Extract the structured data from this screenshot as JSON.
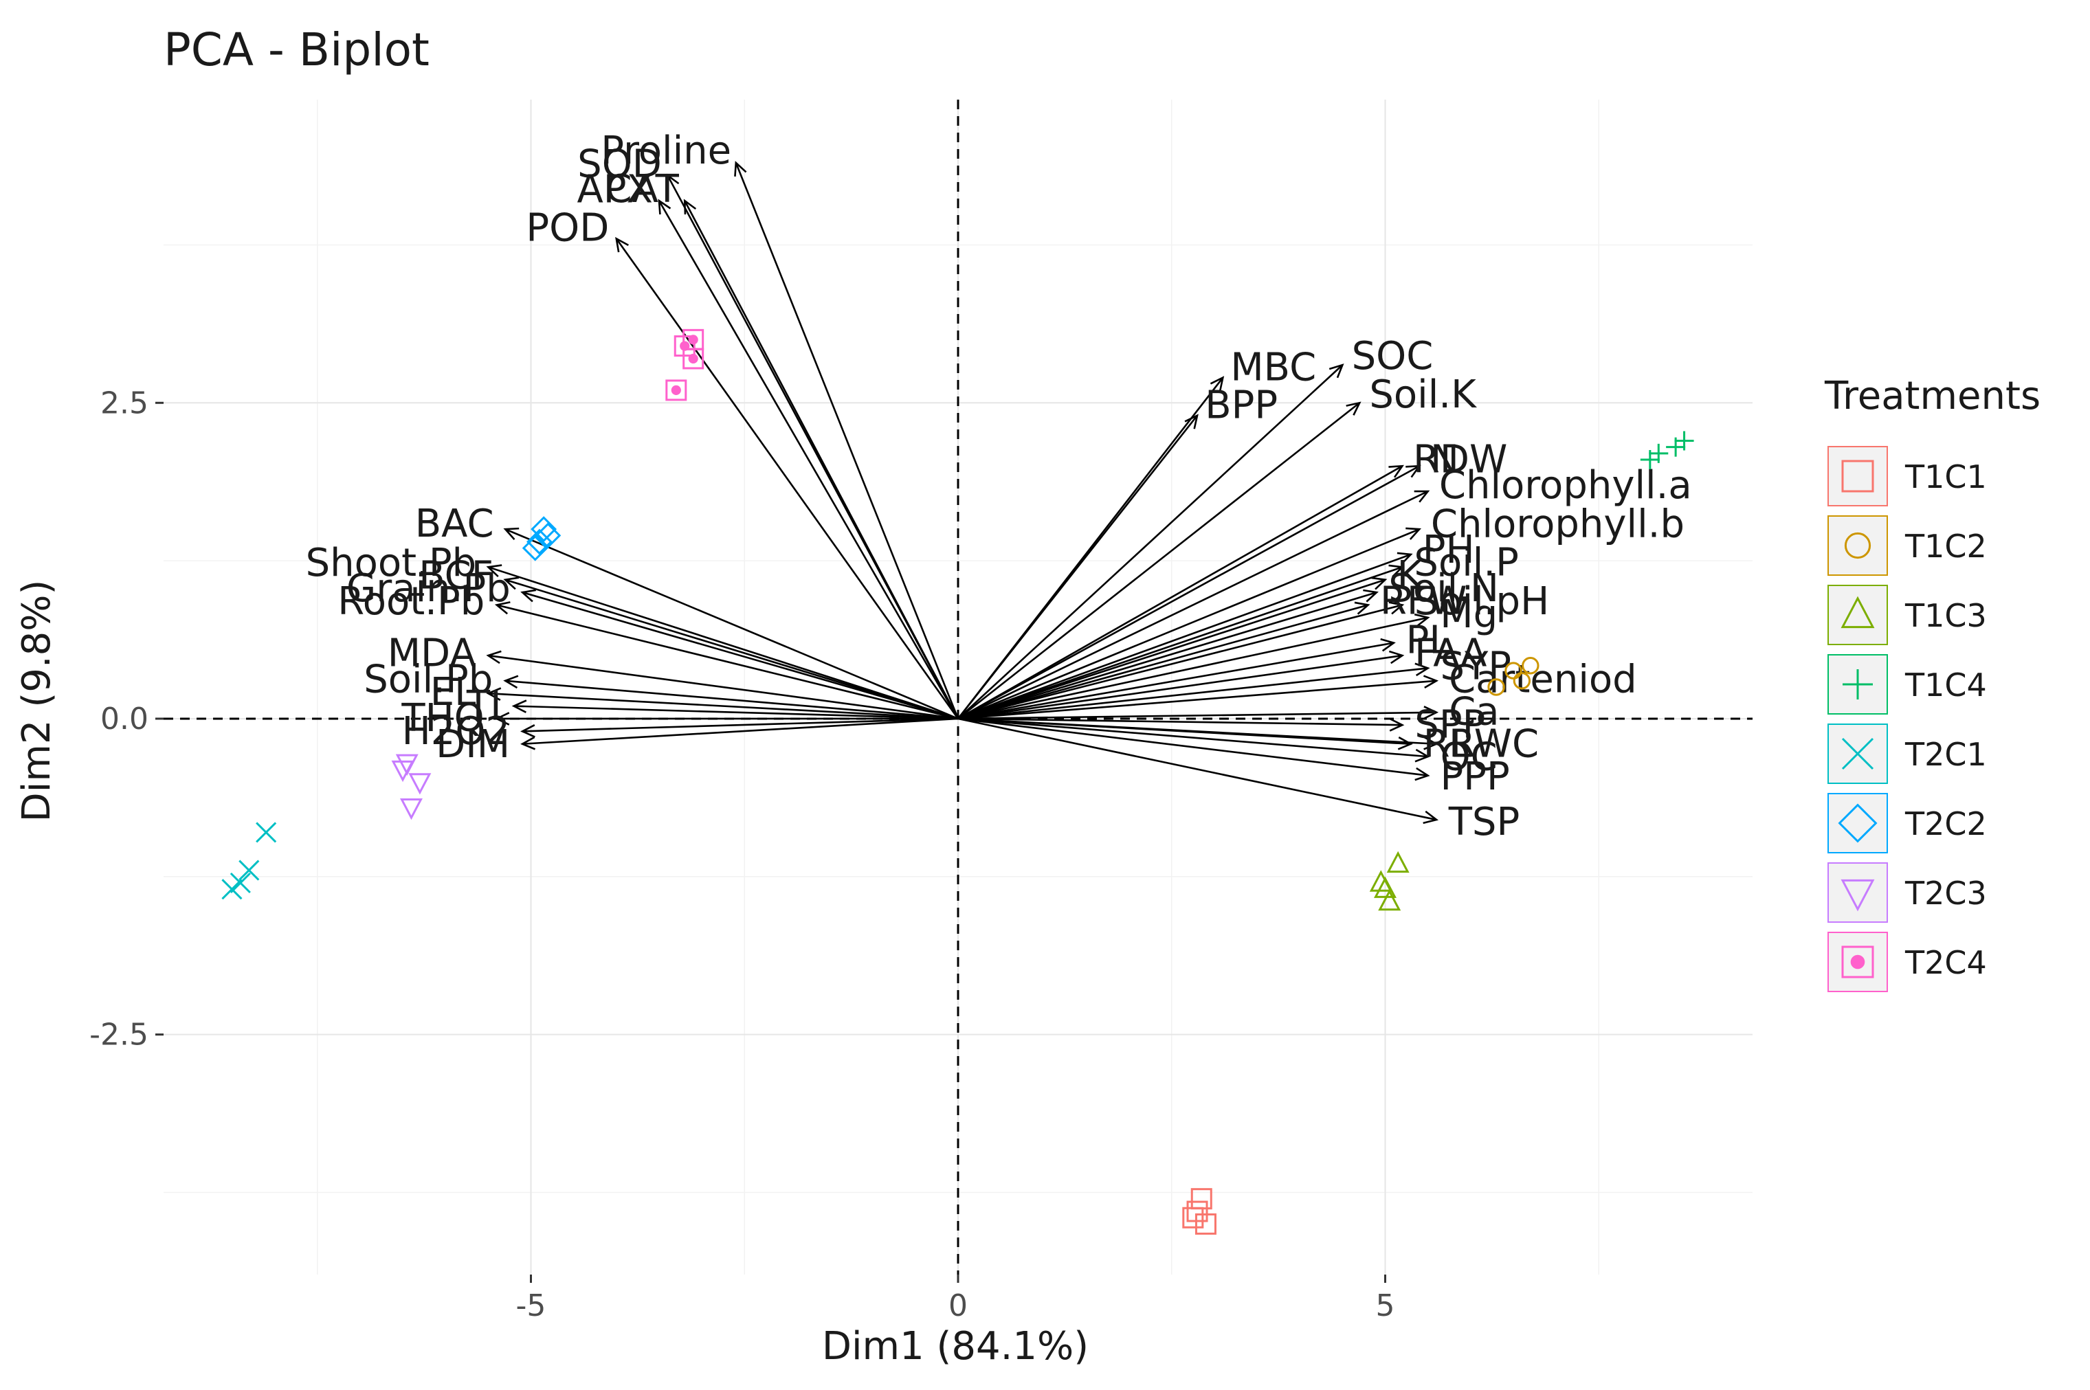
{
  "chart_data": {
    "type": "scatter",
    "subtype": "pca-biplot",
    "title": "PCA - Biplot",
    "xlabel": "Dim1 (84.1%)",
    "ylabel": "Dim2 (9.8%)",
    "xlim": [
      -9.3,
      9.3
    ],
    "ylim": [
      -4.4,
      4.9
    ],
    "x_ticks": [
      -5,
      0,
      5
    ],
    "y_ticks": [
      -2.5,
      0.0,
      2.5
    ],
    "x_tick_labels": [
      "-5",
      "0",
      "5"
    ],
    "y_tick_labels": [
      "-2.5",
      "0.0",
      "2.5"
    ],
    "grid": true,
    "reference_lines": {
      "x": 0,
      "y": 0,
      "style": "dashed"
    },
    "legend": {
      "title": "Treatments",
      "placement": "right",
      "entries": [
        {
          "label": "T1C1",
          "color": "#F8766D",
          "shape": "square"
        },
        {
          "label": "T1C2",
          "color": "#CD9600",
          "shape": "circle"
        },
        {
          "label": "T1C3",
          "color": "#7CAE00",
          "shape": "triangle-up"
        },
        {
          "label": "T1C4",
          "color": "#00BE67",
          "shape": "plus"
        },
        {
          "label": "T2C1",
          "color": "#00BFC4",
          "shape": "cross"
        },
        {
          "label": "T2C2",
          "color": "#00A9FF",
          "shape": "diamond"
        },
        {
          "label": "T2C3",
          "color": "#C77CFF",
          "shape": "triangle-down"
        },
        {
          "label": "T2C4",
          "color": "#FF61CC",
          "shape": "square-dot"
        }
      ]
    },
    "variables": [
      {
        "name": "SOD",
        "x": -3.4,
        "y": 4.3
      },
      {
        "name": "Proline",
        "x": -2.6,
        "y": 4.4
      },
      {
        "name": "CAT",
        "x": -3.2,
        "y": 4.1
      },
      {
        "name": "APX",
        "x": -3.5,
        "y": 4.1
      },
      {
        "name": "POD",
        "x": -4.0,
        "y": 3.8
      },
      {
        "name": "MBC",
        "x": 3.1,
        "y": 2.7
      },
      {
        "name": "BPP",
        "x": 2.8,
        "y": 2.4
      },
      {
        "name": "SOC",
        "x": 4.5,
        "y": 2.8
      },
      {
        "name": "Soil.K",
        "x": 4.7,
        "y": 2.5
      },
      {
        "name": "N",
        "x": 5.4,
        "y": 2.0
      },
      {
        "name": "RDW",
        "x": 5.2,
        "y": 2.0
      },
      {
        "name": "Chlorophyll.a",
        "x": 5.5,
        "y": 1.8
      },
      {
        "name": "Chlorophyll.b",
        "x": 5.4,
        "y": 1.5
      },
      {
        "name": "PH",
        "x": 5.3,
        "y": 1.3
      },
      {
        "name": "Soil.P",
        "x": 5.2,
        "y": 1.2
      },
      {
        "name": "K",
        "x": 5.0,
        "y": 1.1
      },
      {
        "name": "Soil.N",
        "x": 4.9,
        "y": 1.0
      },
      {
        "name": "RFW",
        "x": 4.8,
        "y": 0.9
      },
      {
        "name": "Soil.pH",
        "x": 5.2,
        "y": 0.9
      },
      {
        "name": "Mg",
        "x": 5.5,
        "y": 0.8
      },
      {
        "name": "PL",
        "x": 5.1,
        "y": 0.6
      },
      {
        "name": "FAA",
        "x": 5.2,
        "y": 0.5
      },
      {
        "name": "SYP",
        "x": 5.5,
        "y": 0.4
      },
      {
        "name": "Carteniod",
        "x": 5.6,
        "y": 0.3
      },
      {
        "name": "Ca",
        "x": 5.6,
        "y": 0.05
      },
      {
        "name": "SPP",
        "x": 5.2,
        "y": -0.05
      },
      {
        "name": "RL",
        "x": 5.3,
        "y": -0.2
      },
      {
        "name": "RWC",
        "x": 5.6,
        "y": -0.2
      },
      {
        "name": "OC",
        "x": 5.5,
        "y": -0.3
      },
      {
        "name": "PPP",
        "x": 5.5,
        "y": -0.45
      },
      {
        "name": "TSP",
        "x": 5.6,
        "y": -0.8
      },
      {
        "name": "BAC",
        "x": -5.3,
        "y": 1.5
      },
      {
        "name": "Shoot.Pb",
        "x": -5.5,
        "y": 1.2
      },
      {
        "name": "BCF",
        "x": -5.3,
        "y": 1.1
      },
      {
        "name": "Grain.Pb",
        "x": -5.1,
        "y": 1.0
      },
      {
        "name": "Root.Pb",
        "x": -5.4,
        "y": 0.9
      },
      {
        "name": "MDA",
        "x": -5.5,
        "y": 0.5
      },
      {
        "name": "Soil.Pb",
        "x": -5.3,
        "y": 0.3
      },
      {
        "name": "EL",
        "x": -5.5,
        "y": 0.2
      },
      {
        "name": "TI",
        "x": -5.2,
        "y": 0.1
      },
      {
        "name": "THQ",
        "x": -5.4,
        "y": 0.0
      },
      {
        "name": "H2O2",
        "x": -5.1,
        "y": -0.1
      },
      {
        "name": "DIM",
        "x": -5.1,
        "y": -0.2
      }
    ],
    "series": [
      {
        "name": "T1C1",
        "points": [
          [
            2.8,
            -3.9
          ],
          [
            2.85,
            -3.8
          ],
          [
            2.9,
            -4.0
          ],
          [
            2.75,
            -3.95
          ]
        ]
      },
      {
        "name": "T1C2",
        "points": [
          [
            6.3,
            0.25
          ],
          [
            6.5,
            0.38
          ],
          [
            6.7,
            0.42
          ],
          [
            6.6,
            0.3
          ]
        ]
      },
      {
        "name": "T1C3",
        "points": [
          [
            5.0,
            -1.35
          ],
          [
            5.15,
            -1.15
          ],
          [
            5.05,
            -1.45
          ],
          [
            4.95,
            -1.3
          ]
        ]
      },
      {
        "name": "T1C4",
        "points": [
          [
            8.2,
            2.1
          ],
          [
            8.5,
            2.2
          ],
          [
            8.4,
            2.15
          ],
          [
            8.1,
            2.05
          ]
        ]
      },
      {
        "name": "T2C1",
        "points": [
          [
            -8.5,
            -1.35
          ],
          [
            -8.3,
            -1.2
          ],
          [
            -8.1,
            -0.9
          ],
          [
            -8.4,
            -1.3
          ]
        ]
      },
      {
        "name": "T2C2",
        "points": [
          [
            -4.8,
            1.45
          ],
          [
            -4.95,
            1.35
          ],
          [
            -4.85,
            1.5
          ],
          [
            -4.9,
            1.4
          ]
        ]
      },
      {
        "name": "T2C3",
        "points": [
          [
            -6.5,
            -0.4
          ],
          [
            -6.3,
            -0.5
          ],
          [
            -6.4,
            -0.7
          ],
          [
            -6.45,
            -0.35
          ]
        ]
      },
      {
        "name": "T2C4",
        "points": [
          [
            -3.1,
            3.0
          ],
          [
            -3.2,
            2.95
          ],
          [
            -3.1,
            2.85
          ],
          [
            -3.3,
            2.6
          ]
        ]
      }
    ]
  }
}
